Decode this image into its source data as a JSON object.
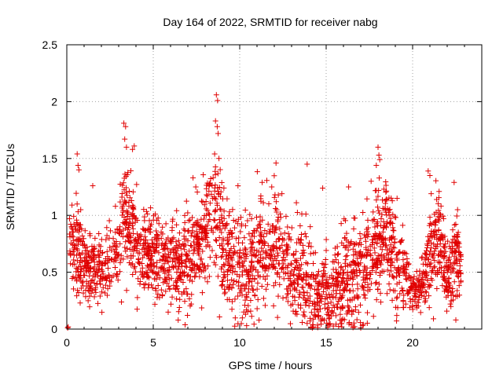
{
  "chart_data": {
    "type": "scatter",
    "title": "Day 164 of 2022, SRMTID for receiver nabg",
    "xlabel": "GPS time / hours",
    "ylabel": "SRMTID / TECUs",
    "xlim": [
      0,
      24
    ],
    "ylim": [
      0,
      2.5
    ],
    "xticks": [
      0,
      5,
      10,
      15,
      20
    ],
    "xtick_labels": [
      "0",
      "5",
      "10",
      "15",
      "20"
    ],
    "yticks": [
      0,
      0.5,
      1,
      1.5,
      2,
      2.5
    ],
    "ytick_labels": [
      "0",
      "0.5",
      "1",
      "1.5",
      "2",
      "2.5"
    ],
    "grid": true,
    "marker": "+",
    "marker_color": "#e00000",
    "series": [
      {
        "name": "SRMTID",
        "envelope_x": [
          0.1,
          0.5,
          1,
          1.5,
          2,
          2.5,
          3,
          3.3,
          3.6,
          4,
          4.5,
          5,
          5.5,
          6,
          6.5,
          7,
          7.5,
          8,
          8.5,
          8.7,
          9,
          9.5,
          10,
          10.5,
          11,
          11.5,
          12,
          12.5,
          13,
          13.5,
          14,
          14.5,
          15,
          15.5,
          16,
          16.5,
          17,
          17.5,
          18,
          18.3,
          18.6,
          19,
          19.5,
          20,
          20.5,
          21,
          21.5,
          22,
          22.5,
          22.8
        ],
        "envelope_median": [
          0.72,
          0.72,
          0.58,
          0.56,
          0.52,
          0.62,
          0.72,
          0.98,
          0.88,
          0.72,
          0.68,
          0.66,
          0.62,
          0.58,
          0.56,
          0.62,
          0.72,
          0.82,
          0.98,
          1.05,
          0.78,
          0.6,
          0.5,
          0.56,
          0.62,
          0.72,
          0.82,
          0.62,
          0.5,
          0.46,
          0.4,
          0.3,
          0.32,
          0.38,
          0.42,
          0.46,
          0.5,
          0.62,
          0.72,
          0.86,
          0.82,
          0.6,
          0.5,
          0.32,
          0.36,
          0.62,
          0.86,
          0.42,
          0.62,
          0.62
        ],
        "envelope_spread": [
          0.22,
          0.3,
          0.22,
          0.2,
          0.22,
          0.22,
          0.26,
          0.4,
          0.36,
          0.3,
          0.26,
          0.28,
          0.26,
          0.26,
          0.26,
          0.3,
          0.3,
          0.32,
          0.38,
          0.5,
          0.34,
          0.3,
          0.3,
          0.32,
          0.34,
          0.36,
          0.34,
          0.32,
          0.3,
          0.3,
          0.3,
          0.26,
          0.26,
          0.3,
          0.3,
          0.32,
          0.32,
          0.3,
          0.34,
          0.4,
          0.34,
          0.32,
          0.26,
          0.1,
          0.12,
          0.3,
          0.32,
          0.18,
          0.28,
          0.24
        ],
        "outliers": [
          [
            8.65,
            2.06
          ],
          [
            8.72,
            2.01
          ],
          [
            8.6,
            1.83
          ],
          [
            8.7,
            1.78
          ],
          [
            8.75,
            1.72
          ],
          [
            3.3,
            1.81
          ],
          [
            3.4,
            1.78
          ],
          [
            3.35,
            1.67
          ],
          [
            3.45,
            1.6
          ],
          [
            3.9,
            1.61
          ],
          [
            3.8,
            1.58
          ],
          [
            0.6,
            1.54
          ],
          [
            0.65,
            1.44
          ],
          [
            0.7,
            1.4
          ],
          [
            12.1,
            1.46
          ],
          [
            13.9,
            1.45
          ],
          [
            18.0,
            1.6
          ],
          [
            18.05,
            1.53
          ],
          [
            18.1,
            1.49
          ],
          [
            17.9,
            1.44
          ],
          [
            20.9,
            1.39
          ],
          [
            21.0,
            1.35
          ],
          [
            22.4,
            1.29
          ],
          [
            8.55,
            1.54
          ],
          [
            8.8,
            1.5
          ],
          [
            1.5,
            1.26
          ],
          [
            7.3,
            1.33
          ],
          [
            9.9,
            1.26
          ],
          [
            11.3,
            1.29
          ],
          [
            14.8,
            1.24
          ],
          [
            16.3,
            1.25
          ],
          [
            17.6,
            1.3
          ],
          [
            19.1,
            1.15
          ],
          [
            22.6,
            1.05
          ],
          [
            0.3,
            1.09
          ],
          [
            0.05,
            0.01
          ],
          [
            0.08,
            0.02
          ],
          [
            14.2,
            0.01
          ],
          [
            14.25,
            0.02
          ],
          [
            15.9,
            0.02
          ],
          [
            17.0,
            0.01
          ],
          [
            17.1,
            0.03
          ],
          [
            17.15,
            0.04
          ],
          [
            13.9,
            0.05
          ],
          [
            10.4,
            0.03
          ],
          [
            22.5,
            0.08
          ]
        ]
      }
    ]
  }
}
